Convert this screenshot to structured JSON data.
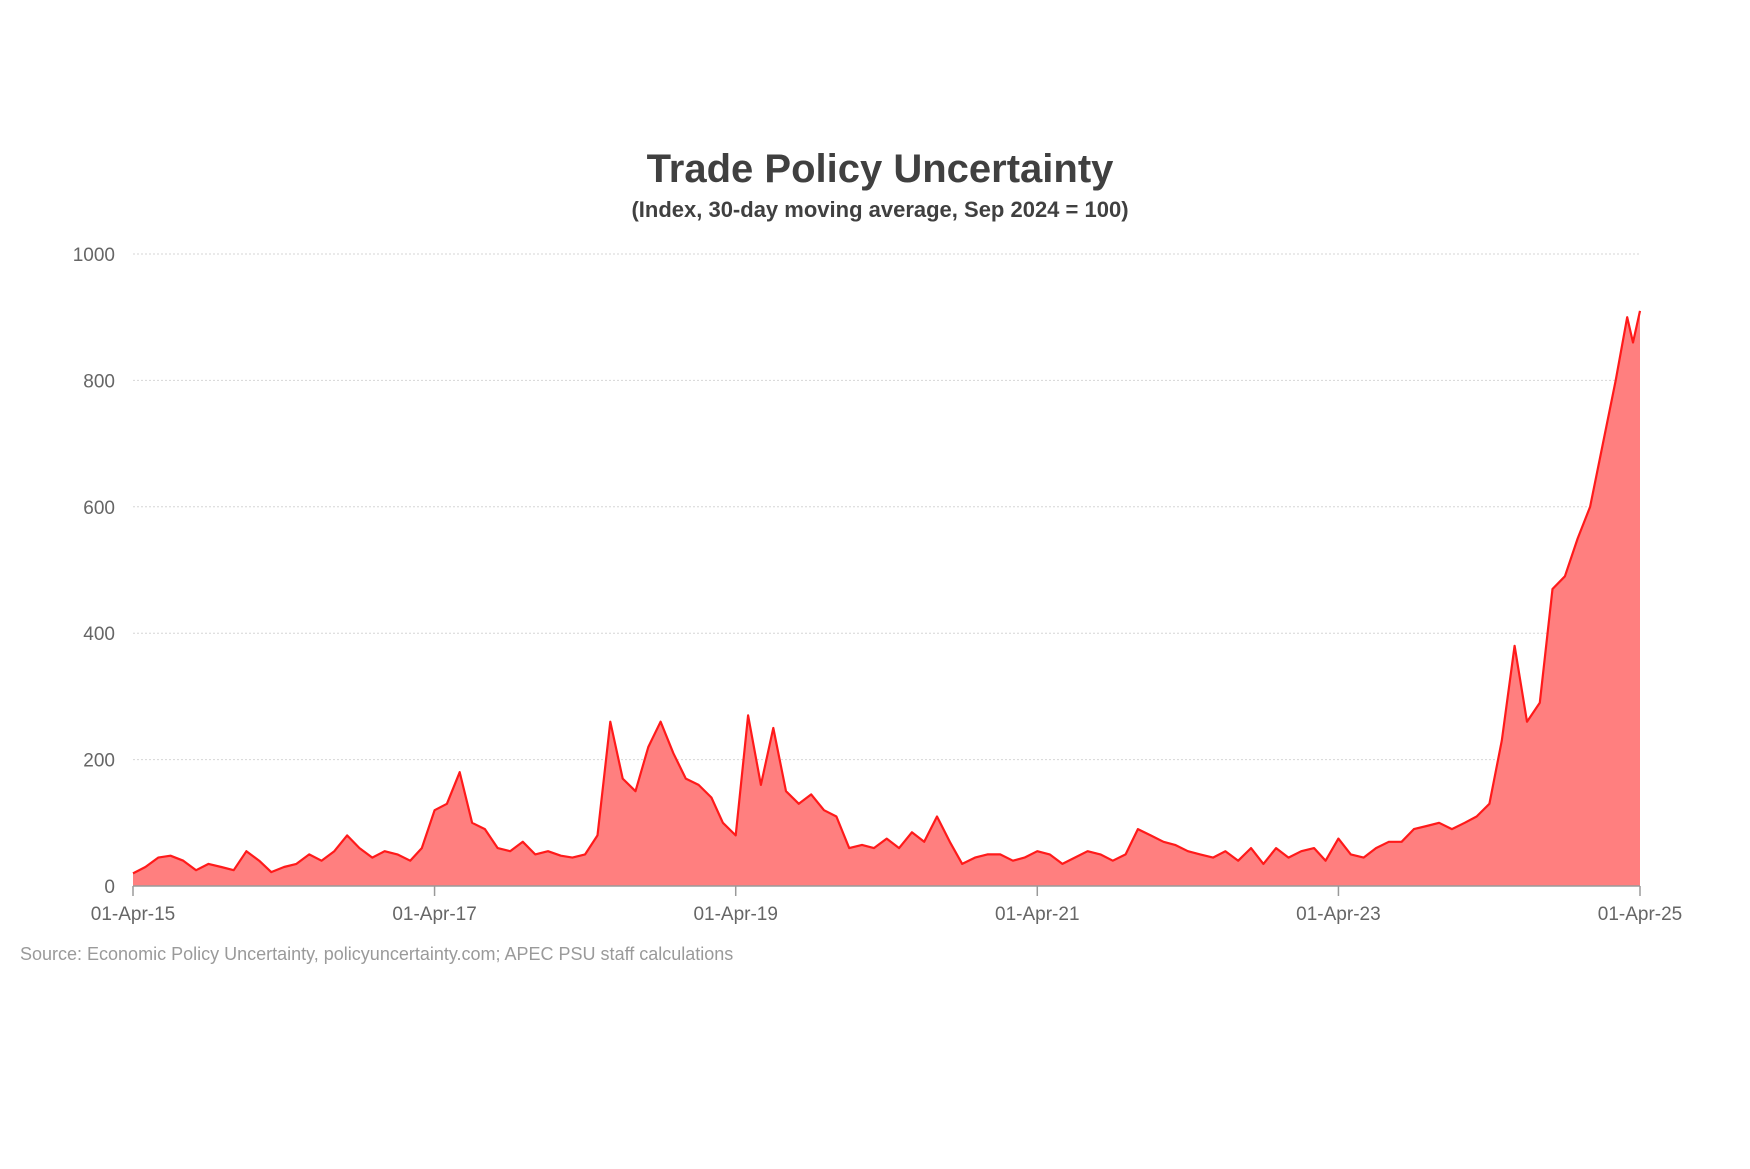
{
  "chart_data": {
    "type": "area",
    "title": "Trade Policy Uncertainty",
    "subtitle": "(Index, 30-day moving average, Sep 2024 = 100)",
    "xlabel": "",
    "ylabel": "",
    "ylim": [
      0,
      1000
    ],
    "y_ticks": [
      0,
      200,
      400,
      600,
      800,
      1000
    ],
    "x_ticks": [
      "01-Apr-15",
      "01-Apr-17",
      "01-Apr-19",
      "01-Apr-21",
      "01-Apr-23",
      "01-Apr-25"
    ],
    "xlim": [
      "2015-04-01",
      "2025-04-01"
    ],
    "grid": true,
    "legend": "none",
    "colors": {
      "line": "#ff1a1a",
      "fill": "#ff7f7f"
    },
    "series": [
      {
        "x": [
          "2015-04-01",
          "2015-05-01",
          "2015-06-01",
          "2015-07-01",
          "2015-08-01",
          "2015-09-01",
          "2015-10-01",
          "2015-11-01",
          "2015-12-01",
          "2016-01-01",
          "2016-02-01",
          "2016-03-01",
          "2016-04-01",
          "2016-05-01",
          "2016-06-01",
          "2016-07-01",
          "2016-08-01",
          "2016-09-01",
          "2016-10-01",
          "2016-11-01",
          "2016-12-01",
          "2017-01-01",
          "2017-02-01",
          "2017-03-01",
          "2017-04-01",
          "2017-05-01",
          "2017-06-01",
          "2017-07-01",
          "2017-08-01",
          "2017-09-01",
          "2017-10-01",
          "2017-11-01",
          "2017-12-01",
          "2018-01-01",
          "2018-02-01",
          "2018-03-01",
          "2018-04-01",
          "2018-05-01",
          "2018-06-01",
          "2018-07-01",
          "2018-08-01",
          "2018-09-01",
          "2018-10-01",
          "2018-11-01",
          "2018-12-01",
          "2019-01-01",
          "2019-02-01",
          "2019-03-01",
          "2019-04-01",
          "2019-05-01",
          "2019-06-01",
          "2019-07-01",
          "2019-08-01",
          "2019-09-01",
          "2019-10-01",
          "2019-11-01",
          "2019-12-01",
          "2020-01-01",
          "2020-02-01",
          "2020-03-01",
          "2020-04-01",
          "2020-05-01",
          "2020-06-01",
          "2020-07-01",
          "2020-08-01",
          "2020-09-01",
          "2020-10-01",
          "2020-11-01",
          "2020-12-01",
          "2021-01-01",
          "2021-02-01",
          "2021-03-01",
          "2021-04-01",
          "2021-05-01",
          "2021-06-01",
          "2021-07-01",
          "2021-08-01",
          "2021-09-01",
          "2021-10-01",
          "2021-11-01",
          "2021-12-01",
          "2022-01-01",
          "2022-02-01",
          "2022-03-01",
          "2022-04-01",
          "2022-05-01",
          "2022-06-01",
          "2022-07-01",
          "2022-08-01",
          "2022-09-01",
          "2022-10-01",
          "2022-11-01",
          "2022-12-01",
          "2023-01-01",
          "2023-02-01",
          "2023-03-01",
          "2023-04-01",
          "2023-05-01",
          "2023-06-01",
          "2023-07-01",
          "2023-08-01",
          "2023-09-01",
          "2023-10-01",
          "2023-11-01",
          "2023-12-01",
          "2024-01-01",
          "2024-02-01",
          "2024-03-01",
          "2024-04-01",
          "2024-05-01",
          "2024-06-01",
          "2024-07-01",
          "2024-08-01",
          "2024-09-01",
          "2024-10-01",
          "2024-11-01",
          "2024-12-01",
          "2025-01-01",
          "2025-02-01",
          "2025-03-01",
          "2025-03-15",
          "2025-04-01"
        ],
        "values": [
          20,
          30,
          45,
          48,
          40,
          25,
          35,
          30,
          25,
          55,
          40,
          22,
          30,
          35,
          50,
          40,
          55,
          80,
          60,
          45,
          55,
          50,
          40,
          60,
          120,
          130,
          180,
          100,
          90,
          60,
          55,
          70,
          50,
          55,
          48,
          45,
          50,
          80,
          260,
          170,
          150,
          220,
          260,
          210,
          170,
          160,
          140,
          100,
          80,
          270,
          160,
          250,
          150,
          130,
          145,
          120,
          110,
          60,
          65,
          60,
          75,
          60,
          85,
          70,
          110,
          70,
          35,
          45,
          50,
          50,
          40,
          45,
          55,
          50,
          35,
          45,
          55,
          50,
          40,
          50,
          90,
          80,
          70,
          65,
          55,
          50,
          45,
          55,
          40,
          60,
          35,
          60,
          45,
          55,
          60,
          40,
          75,
          50,
          45,
          60,
          70,
          70,
          90,
          95,
          100,
          90,
          100,
          110,
          130,
          230,
          380,
          260,
          290,
          470,
          490,
          550,
          600,
          700,
          800,
          900,
          860,
          910
        ]
      }
    ],
    "source": "Source: Economic Policy Uncertainty, policyuncertainty.com; APEC PSU staff calculations"
  }
}
